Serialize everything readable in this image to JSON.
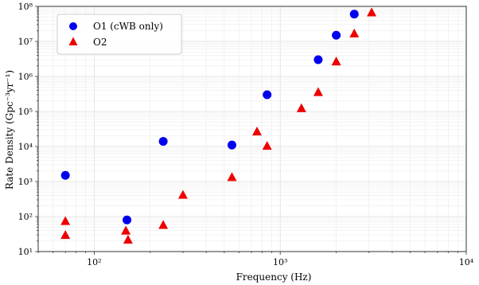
{
  "chart_data": {
    "type": "scatter",
    "title": "",
    "xlabel": "Frequency (Hz)",
    "ylabel": "Rate Density (Gpc⁻³yr⁻¹)",
    "xscale": "log",
    "yscale": "log",
    "xlim": [
      50,
      10000
    ],
    "ylim": [
      10,
      100000000
    ],
    "grid": true,
    "legend_position": "top-left",
    "x_ticks": [
      {
        "value": 100,
        "label": "10²"
      },
      {
        "value": 1000,
        "label": "10³"
      },
      {
        "value": 10000,
        "label": "10⁴"
      }
    ],
    "y_ticks": [
      {
        "value": 10,
        "label": "10¹"
      },
      {
        "value": 100,
        "label": "10²"
      },
      {
        "value": 1000,
        "label": "10³"
      },
      {
        "value": 10000,
        "label": "10⁴"
      },
      {
        "value": 100000,
        "label": "10⁵"
      },
      {
        "value": 1000000,
        "label": "10⁶"
      },
      {
        "value": 10000000,
        "label": "10⁷"
      },
      {
        "value": 100000000,
        "label": "10⁸"
      }
    ],
    "series": [
      {
        "name": "O1 (cWB only)",
        "marker": "circle",
        "color": "#0000ee",
        "points": [
          {
            "x": 70,
            "y": 1500
          },
          {
            "x": 150,
            "y": 80
          },
          {
            "x": 235,
            "y": 14000
          },
          {
            "x": 550,
            "y": 11000
          },
          {
            "x": 850,
            "y": 300000
          },
          {
            "x": 1600,
            "y": 3000000
          },
          {
            "x": 2000,
            "y": 15000000
          },
          {
            "x": 2500,
            "y": 60000000
          }
        ]
      },
      {
        "name": "O2",
        "marker": "triangle",
        "color": "#ee0000",
        "points": [
          {
            "x": 70,
            "y": 75
          },
          {
            "x": 70,
            "y": 30
          },
          {
            "x": 148,
            "y": 40
          },
          {
            "x": 152,
            "y": 22
          },
          {
            "x": 235,
            "y": 58
          },
          {
            "x": 300,
            "y": 420
          },
          {
            "x": 550,
            "y": 1350
          },
          {
            "x": 750,
            "y": 27000
          },
          {
            "x": 850,
            "y": 10500
          },
          {
            "x": 1300,
            "y": 125000
          },
          {
            "x": 1600,
            "y": 360000
          },
          {
            "x": 2000,
            "y": 2700000
          },
          {
            "x": 2500,
            "y": 17000000
          },
          {
            "x": 3100,
            "y": 68000000
          }
        ]
      }
    ]
  }
}
